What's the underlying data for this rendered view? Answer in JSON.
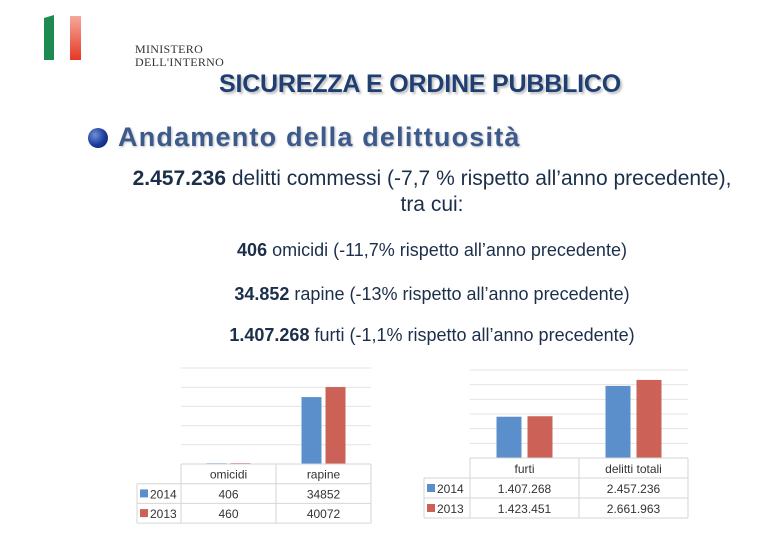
{
  "header": {
    "logo_text_line1": "MINISTERO",
    "logo_text_line2": "DELL'INTERNO",
    "title": "SICUREZZA E ORDINE PUBBLICO"
  },
  "section": {
    "heading": "Andamento della delittuosità",
    "intro_value": "2.457.236",
    "intro_text": " delitti commessi (-7,7 % rispetto all’anno precedente), tra cui:",
    "stats": [
      {
        "value": "406",
        "text": " omicidi (-11,7% rispetto all’anno precedente)"
      },
      {
        "value": "34.852",
        "text": " rapine (-13% rispetto all’anno precedente)"
      },
      {
        "value": "1.407.268",
        "text": " furti (-1,1% rispetto all’anno precedente)"
      }
    ]
  },
  "colors": {
    "series_2014": "#5b8fcc",
    "series_2013": "#cc6158",
    "grid": "#e3e3e3",
    "title": "#1f3f73"
  },
  "chart_data": [
    {
      "type": "bar",
      "categories": [
        "omicidi",
        "rapine"
      ],
      "series": [
        {
          "name": "2014",
          "values": [
            406,
            34852
          ],
          "labels": [
            "406",
            "34852"
          ]
        },
        {
          "name": "2013",
          "values": [
            460,
            40072
          ],
          "labels": [
            "460",
            "40072"
          ]
        }
      ],
      "ylim": [
        0,
        50000
      ],
      "grid": true,
      "legend": "data-table"
    },
    {
      "type": "bar",
      "categories": [
        "furti",
        "delitti totali"
      ],
      "series": [
        {
          "name": "2014",
          "values": [
            1407268,
            2457236
          ],
          "labels": [
            "1.407.268",
            "2.457.236"
          ]
        },
        {
          "name": "2013",
          "values": [
            1423451,
            2661963
          ],
          "labels": [
            "1.423.451",
            "2.661.963"
          ]
        }
      ],
      "ylim": [
        0,
        3000000
      ],
      "grid": true,
      "legend": "data-table"
    }
  ]
}
